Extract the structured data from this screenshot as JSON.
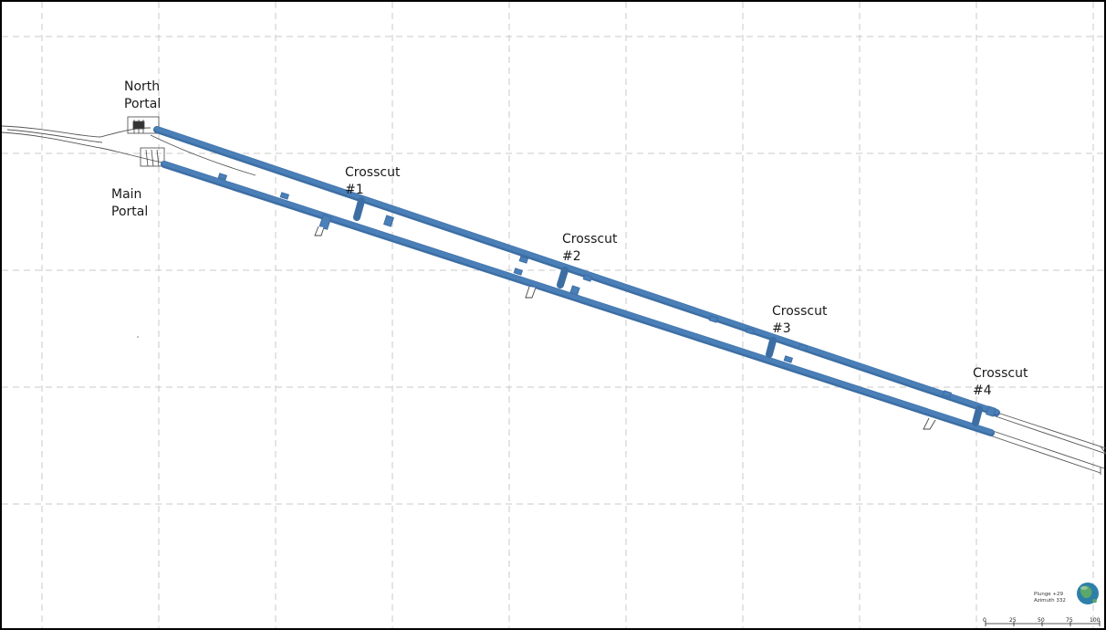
{
  "labels": {
    "north_portal": [
      "North",
      "Portal"
    ],
    "main_portal": [
      "Main",
      "Portal"
    ],
    "crosscuts": [
      [
        "Crosscut",
        "#1"
      ],
      [
        "Crosscut",
        "#2"
      ],
      [
        "Crosscut",
        "#3"
      ],
      [
        "Crosscut",
        "#4"
      ]
    ]
  },
  "orientation": {
    "plunge": "Plunge +29",
    "azimuth": "Azimuth 332"
  },
  "scale_bar": {
    "ticks": [
      "0",
      "25",
      "50",
      "75",
      "100"
    ]
  },
  "colors": {
    "tunnel": "#4a7fb8",
    "tunnel_dark": "#3d6ea3",
    "grid": "#c8c8c8",
    "outline": "#555555",
    "text": "#1a1a1a"
  }
}
